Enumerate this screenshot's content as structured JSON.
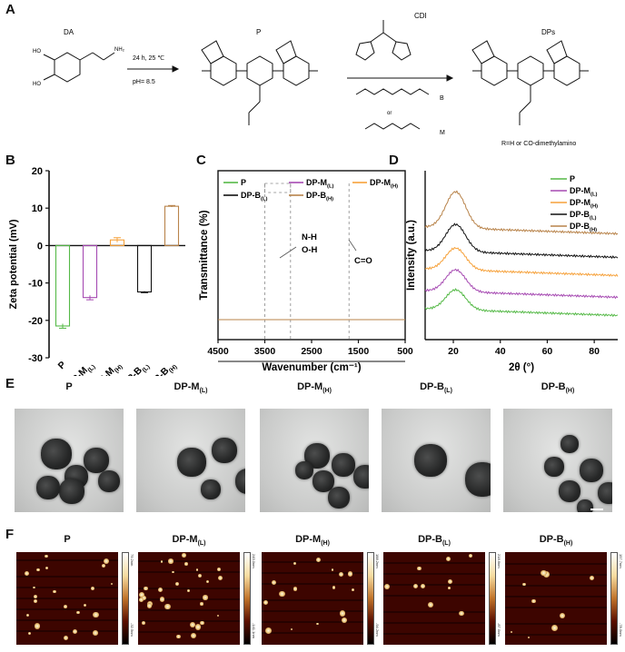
{
  "panels": {
    "A": "A",
    "B": "B",
    "C": "C",
    "D": "D",
    "E": "E",
    "F": "F"
  },
  "scheme": {
    "da_label": "DA",
    "nh2": "NH₂",
    "ho1": "HO",
    "ho2": "HO",
    "cond1": "24 h, 25 ℃",
    "cond2": "pH= 8.5",
    "p_label": "P",
    "cdi_label": "CDI",
    "dps_label": "DPs",
    "b_label": "B",
    "m_label": "M",
    "or_label": "or",
    "rgroup": "R=H or CO-dimethylamino"
  },
  "chart_data": [
    {
      "type": "bar",
      "panel": "B",
      "categories": [
        "P",
        "DP-M(L)",
        "DP-M(H)",
        "DP-B(L)",
        "DP-B(H)"
      ],
      "values": [
        -21.5,
        -13.9,
        1.5,
        -12.4,
        10.5
      ],
      "errors": [
        0.6,
        0.6,
        0.6,
        0.2,
        0.2
      ],
      "colors": [
        "#55b947",
        "#a64ab2",
        "#f6a13a",
        "#111111",
        "#b8834a"
      ],
      "ylabel": "Zeta potential (mV)",
      "ylim": [
        -30,
        20
      ],
      "yticks": [
        "-30",
        "-20",
        "-10",
        "0",
        "10",
        "20"
      ]
    },
    {
      "type": "line",
      "panel": "C",
      "xlabel": "Wavenumber (cm⁻¹)",
      "ylabel": "Transmittance (%)",
      "xticks": [
        "4500",
        "3500",
        "2500",
        "1500",
        "500"
      ],
      "series": [
        {
          "name": "P",
          "color": "#55b947"
        },
        {
          "name": "DP-M(L)",
          "color": "#a64ab2"
        },
        {
          "name": "DP-M(H)",
          "color": "#f6a13a"
        },
        {
          "name": "DP-B(L)",
          "color": "#111111"
        },
        {
          "name": "DP-B(H)",
          "color": "#b8834a"
        }
      ],
      "annotations": [
        "N-H",
        "O-H",
        "C=O"
      ]
    },
    {
      "type": "line",
      "panel": "D",
      "xlabel": "2θ (°)",
      "ylabel": "Intensity (a.u.)",
      "xticks": [
        "20",
        "40",
        "60",
        "80"
      ],
      "series": [
        {
          "name": "P",
          "color": "#55b947"
        },
        {
          "name": "DP-M(L)",
          "color": "#a64ab2"
        },
        {
          "name": "DP-M(H)",
          "color": "#f6a13a"
        },
        {
          "name": "DP-B(L)",
          "color": "#111111"
        },
        {
          "name": "DP-B(H)",
          "color": "#b8834a"
        }
      ]
    }
  ],
  "legend_names": [
    "P",
    "DP-M",
    "DP-M",
    "DP-B",
    "DP-B"
  ],
  "legend_subs": [
    "",
    "(L)",
    "(H)",
    "(L)",
    "(H)"
  ],
  "tem_titles": [
    "P",
    "DP-M",
    "DP-M",
    "DP-B",
    "DP-B"
  ],
  "tem_subs": [
    "",
    "(L)",
    "(H)",
    "(L)",
    "(H)"
  ],
  "afm_titles": [
    "P",
    "DP-M",
    "DP-M",
    "DP-B",
    "DP-B"
  ],
  "afm_subs": [
    "",
    "(L)",
    "(H)",
    "(L)",
    "(H)"
  ],
  "afm_scale_top": [
    "79.2nm",
    "245.0nm",
    "188.2nm",
    "218.6nm",
    "197.7nm"
  ],
  "afm_scale_bottom": [
    "-32.5nm",
    "-141.1nm",
    "-94.2nm",
    "-87.0nm",
    "-78.0nm"
  ]
}
